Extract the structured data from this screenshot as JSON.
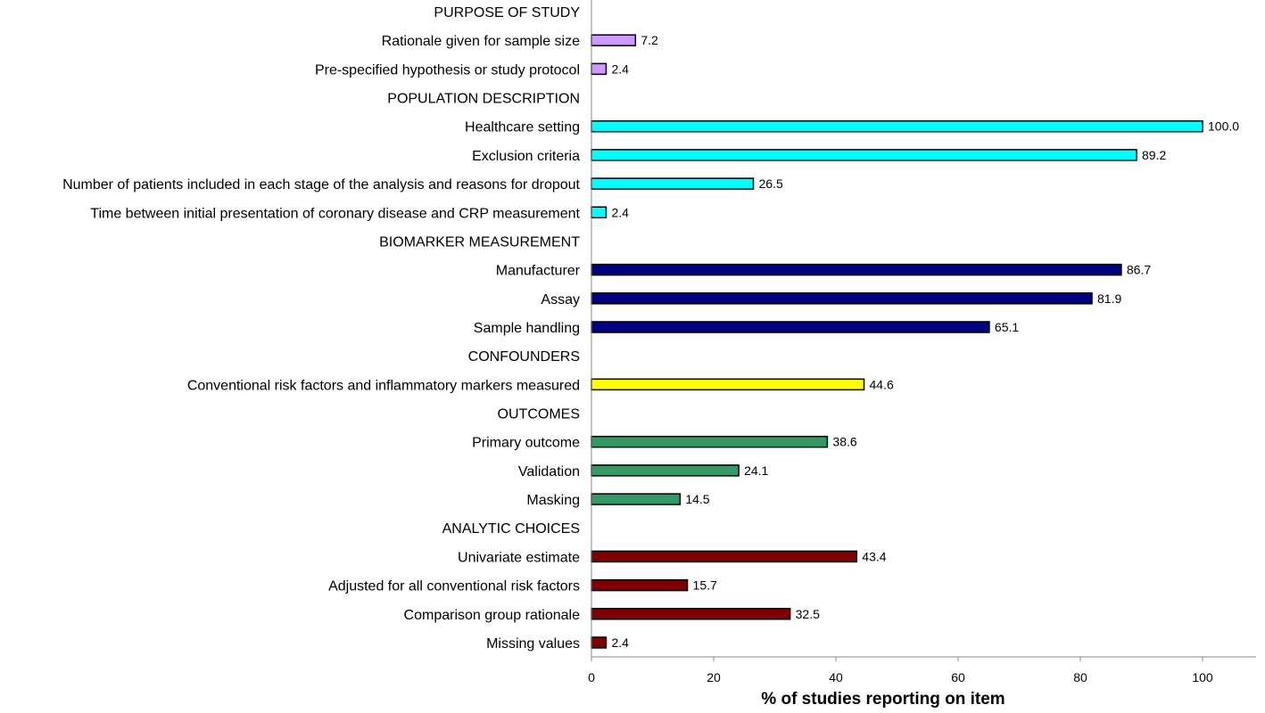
{
  "chart_data": {
    "type": "bar",
    "orientation": "horizontal",
    "xlabel": "% of studies reporting on item",
    "xlim": [
      0,
      100
    ],
    "xticks": [
      "0",
      "20",
      "40",
      "60",
      "80",
      "100"
    ],
    "grid": false,
    "rows": [
      {
        "label": "PURPOSE OF STUDY",
        "header": true
      },
      {
        "label": "Rationale given for sample size",
        "value": 7.2,
        "value_label": "7.2",
        "color": "#cc99ff"
      },
      {
        "label": "Pre-specified hypothesis or study protocol",
        "value": 2.4,
        "value_label": "2.4",
        "color": "#cc99ff"
      },
      {
        "label": "POPULATION DESCRIPTION",
        "header": true
      },
      {
        "label": "Healthcare setting",
        "value": 100.0,
        "value_label": "100.0",
        "color": "#00ffff"
      },
      {
        "label": "Exclusion criteria",
        "value": 89.2,
        "value_label": "89.2",
        "color": "#00ffff"
      },
      {
        "label": "Number of patients included in each stage of the analysis and reasons for dropout",
        "value": 26.5,
        "value_label": "26.5",
        "color": "#00ffff"
      },
      {
        "label": "Time between initial presentation of coronary disease and CRP measurement",
        "value": 2.4,
        "value_label": "2.4",
        "color": "#00ffff"
      },
      {
        "label": "BIOMARKER MEASUREMENT",
        "header": true
      },
      {
        "label": "Manufacturer",
        "value": 86.7,
        "value_label": "86.7",
        "color": "#000080"
      },
      {
        "label": "Assay",
        "value": 81.9,
        "value_label": "81.9",
        "color": "#000080"
      },
      {
        "label": "Sample handling",
        "value": 65.1,
        "value_label": "65.1",
        "color": "#000080"
      },
      {
        "label": "CONFOUNDERS",
        "header": true
      },
      {
        "label": "Conventional risk factors and inflammatory markers measured",
        "value": 44.6,
        "value_label": "44.6",
        "color": "#ffff00"
      },
      {
        "label": "OUTCOMES",
        "header": true
      },
      {
        "label": "Primary outcome",
        "value": 38.6,
        "value_label": "38.6",
        "color": "#339966"
      },
      {
        "label": "Validation",
        "value": 24.1,
        "value_label": "24.1",
        "color": "#339966"
      },
      {
        "label": "Masking",
        "value": 14.5,
        "value_label": "14.5",
        "color": "#339966"
      },
      {
        "label": "ANALYTIC CHOICES",
        "header": true
      },
      {
        "label": "Univariate estimate",
        "value": 43.4,
        "value_label": "43.4",
        "color": "#800000"
      },
      {
        "label": "Adjusted for all conventional risk factors",
        "value": 15.7,
        "value_label": "15.7",
        "color": "#800000"
      },
      {
        "label": "Comparison group rationale",
        "value": 32.5,
        "value_label": "32.5",
        "color": "#800000"
      },
      {
        "label": "Missing values",
        "value": 2.4,
        "value_label": "2.4",
        "color": "#800000"
      }
    ]
  }
}
